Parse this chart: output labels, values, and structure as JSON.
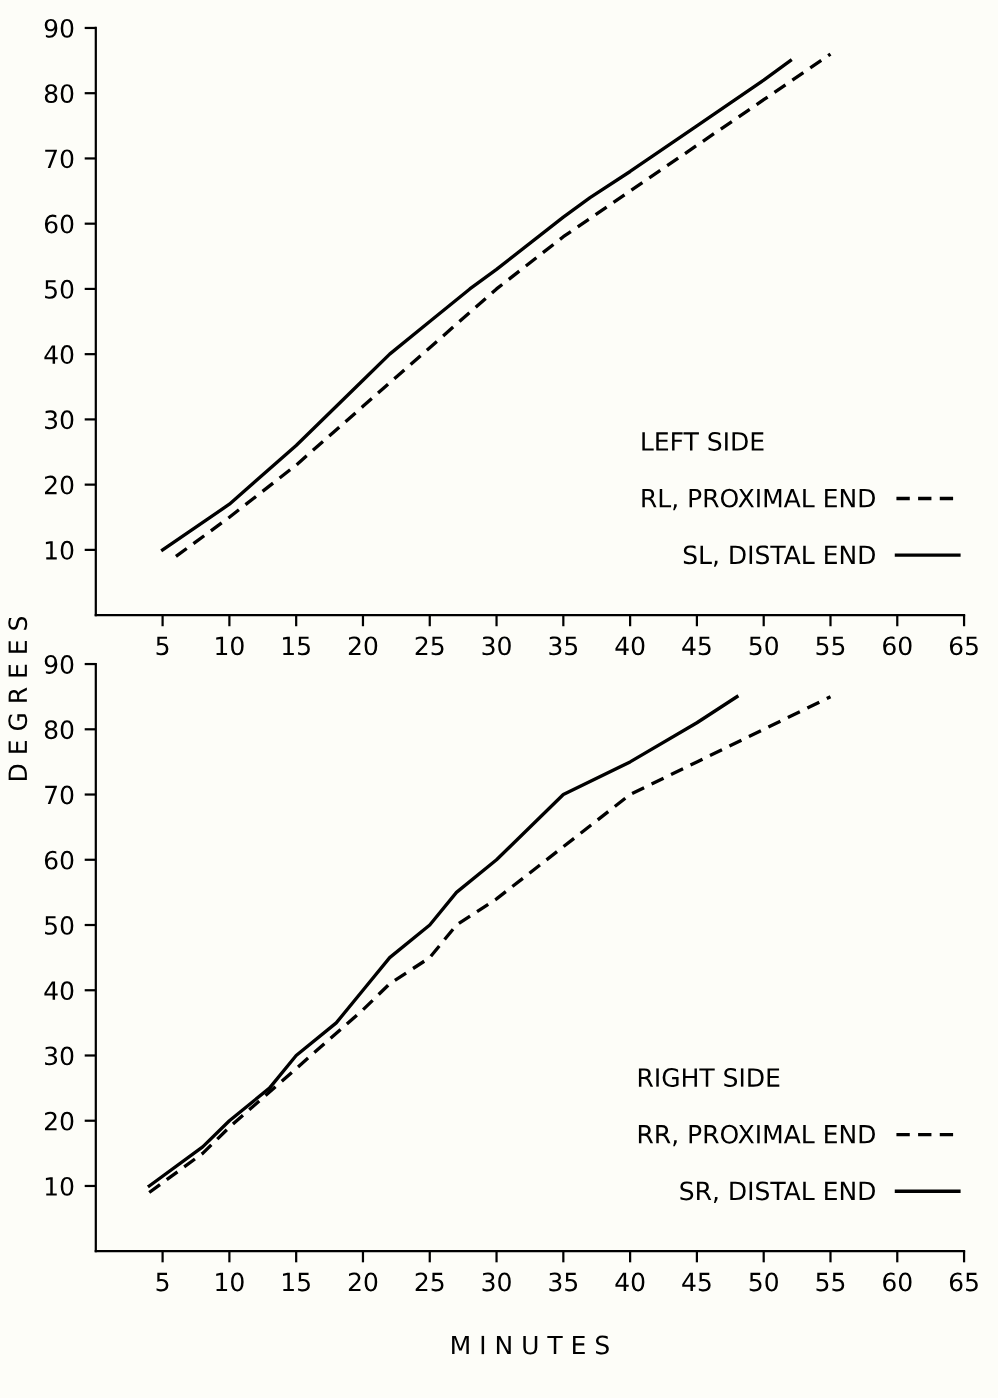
{
  "chart_data": [
    {
      "type": "line",
      "ylabel": "D E G R E E S",
      "legend_title": "LEFT SIDE",
      "legend": "bottom right",
      "xlim": [
        0,
        65
      ],
      "ylim": [
        0,
        90
      ],
      "xticks": [
        5,
        10,
        15,
        20,
        25,
        30,
        35,
        40,
        45,
        50,
        55,
        60,
        65
      ],
      "yticks": [
        10,
        20,
        30,
        40,
        50,
        60,
        70,
        80,
        90
      ],
      "grid": false,
      "series": [
        {
          "name": "RL, PROXIMAL END",
          "color": "#000000",
          "line_style": "dashed",
          "x": [
            6,
            10,
            15,
            20,
            25,
            30,
            35,
            40,
            45,
            50,
            55
          ],
          "values": [
            9,
            15,
            23,
            32,
            41,
            50,
            58,
            65,
            72,
            79,
            86
          ]
        },
        {
          "name": "SL, DISTAL END",
          "color": "#000000",
          "line_style": "solid",
          "x": [
            5,
            10,
            15,
            20,
            22,
            25,
            28,
            30,
            35,
            37,
            40,
            45,
            50,
            52
          ],
          "values": [
            10,
            17,
            26,
            36,
            40,
            45,
            50,
            53,
            61,
            64,
            68,
            75,
            82,
            85
          ]
        }
      ]
    },
    {
      "type": "line",
      "xlabel": "M I N U T E S",
      "legend_title": "RIGHT SIDE",
      "legend": "bottom right",
      "xlim": [
        0,
        65
      ],
      "ylim": [
        0,
        90
      ],
      "xticks": [
        5,
        10,
        15,
        20,
        25,
        30,
        35,
        40,
        45,
        50,
        55,
        60,
        65
      ],
      "yticks": [
        10,
        20,
        30,
        40,
        50,
        60,
        70,
        80,
        90
      ],
      "grid": false,
      "series": [
        {
          "name": "RR, PROXIMAL END",
          "color": "#000000",
          "line_style": "dashed",
          "x": [
            4,
            8,
            10,
            15,
            20,
            22,
            25,
            27,
            30,
            35,
            40,
            45,
            50,
            55
          ],
          "values": [
            9,
            15,
            19,
            28,
            37,
            41,
            45,
            50,
            54,
            62,
            70,
            75,
            80,
            85
          ]
        },
        {
          "name": "SR, DISTAL END",
          "color": "#000000",
          "line_style": "solid",
          "x": [
            4,
            8,
            10,
            13,
            15,
            18,
            20,
            22,
            25,
            27,
            30,
            35,
            40,
            45,
            48
          ],
          "values": [
            10,
            16,
            20,
            25,
            30,
            35,
            40,
            45,
            50,
            55,
            60,
            70,
            75,
            81,
            85
          ]
        }
      ]
    }
  ]
}
